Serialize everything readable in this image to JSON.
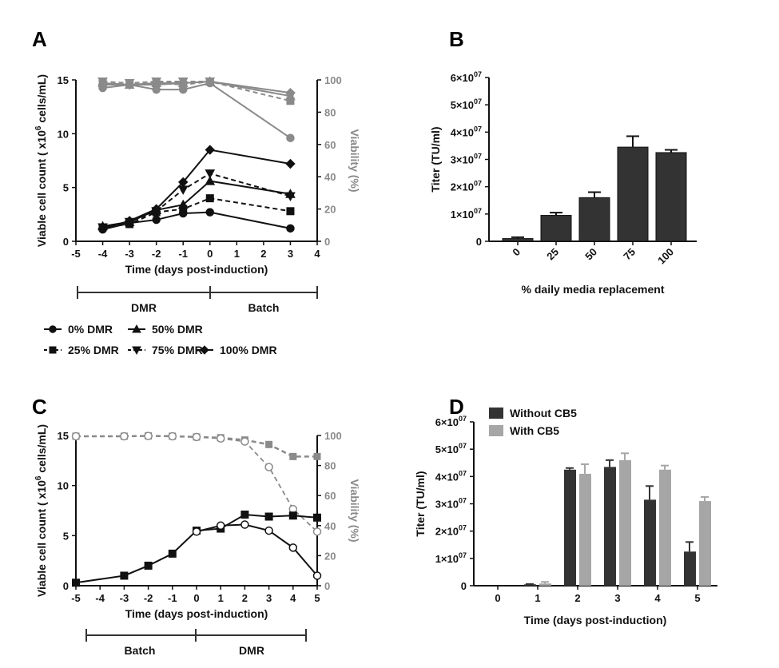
{
  "chart_data": [
    {
      "panel": "A",
      "type": "line",
      "xlabel": "Time (days post-induction)",
      "ylabel": "Viable cell count ( x10^6 cells/mL)",
      "y2label": "Viability (%)",
      "xlim": [
        -5,
        4
      ],
      "ylim": [
        0,
        15
      ],
      "y2lim": [
        0,
        100
      ],
      "xticks": [
        -5,
        -4,
        -3,
        -2,
        -1,
        0,
        1,
        2,
        3,
        4
      ],
      "yticks": [
        0,
        5,
        10,
        15
      ],
      "y2ticks": [
        0,
        20,
        40,
        60,
        80,
        100
      ],
      "x": [
        -4,
        -3,
        -2,
        -1,
        0,
        3
      ],
      "series": [
        {
          "name": "0%  DMR",
          "marker": "circle",
          "dashed": false,
          "cells": [
            1.1,
            1.7,
            2.0,
            2.6,
            2.7,
            1.2
          ],
          "viability": [
            95,
            97,
            94,
            94,
            98,
            64
          ]
        },
        {
          "name": "25%  DMR",
          "marker": "square",
          "dashed": true,
          "cells": [
            1.3,
            1.6,
            2.7,
            3.0,
            4.0,
            2.8
          ],
          "viability": [
            98,
            97,
            98,
            97,
            99,
            87
          ]
        },
        {
          "name": "50%  DMR",
          "marker": "triangle",
          "dashed": false,
          "cells": [
            1.4,
            1.8,
            2.9,
            3.4,
            5.6,
            4.4
          ],
          "viability": [
            98,
            97,
            98,
            98,
            99,
            90
          ]
        },
        {
          "name": "75% DMR",
          "marker": "triangle-down",
          "dashed": true,
          "cells": [
            1.3,
            1.8,
            2.8,
            4.8,
            6.3,
            4.2
          ],
          "viability": [
            99,
            98,
            99,
            99,
            99,
            90
          ]
        },
        {
          "name": "100% DMR",
          "marker": "diamond",
          "dashed": false,
          "cells": [
            1.2,
            1.9,
            3.0,
            5.5,
            8.5,
            7.2
          ],
          "viability": [
            97,
            97,
            97,
            98,
            99,
            92
          ]
        }
      ],
      "phases": [
        "DMR",
        "Batch"
      ]
    },
    {
      "panel": "B",
      "type": "bar",
      "xlabel": "% daily media replacement",
      "ylabel": "Titer (TU/ml)",
      "categories": [
        "0",
        "25",
        "50",
        "75",
        "100"
      ],
      "values": [
        1000000,
        9500000,
        16000000,
        34500000,
        32500000
      ],
      "errors": [
        500000,
        1000000,
        2000000,
        4000000,
        1000000
      ],
      "ylim": [
        0,
        60000000
      ],
      "yticks": [
        "0",
        "1×10^07",
        "2×10^07",
        "3×10^07",
        "4×10^07",
        "5×10^07",
        "6×10^07"
      ]
    },
    {
      "panel": "C",
      "type": "line",
      "xlabel": "Time (days post-induction)",
      "ylabel": "Viable cell count ( x10^6 cells/mL)",
      "y2label": "Viability (%)",
      "xlim": [
        -5,
        5
      ],
      "ylim": [
        0,
        15
      ],
      "y2lim": [
        0,
        100
      ],
      "xticks": [
        -5,
        -4,
        -3,
        -2,
        -1,
        0,
        1,
        2,
        3,
        4,
        5
      ],
      "yticks": [
        0,
        5,
        10,
        15
      ],
      "y2ticks": [
        0,
        20,
        40,
        60,
        80,
        100
      ],
      "series": [
        {
          "name": "cells-filled",
          "x": [
            -5,
            -3,
            -2,
            -1,
            0,
            1,
            2,
            3,
            4,
            5
          ],
          "cells": [
            0.3,
            1.0,
            2.0,
            3.2,
            5.5,
            5.7,
            7.1,
            6.9,
            7.0,
            6.8
          ],
          "vx": [
            -5,
            -3,
            -2,
            -1,
            0,
            1,
            2,
            3,
            4,
            5
          ],
          "viability": [
            99.5,
            99.5,
            99.7,
            99.5,
            99,
            98.5,
            97,
            94,
            86,
            86
          ]
        },
        {
          "name": "cells-open",
          "x": [
            0,
            1,
            2,
            3,
            4,
            5
          ],
          "cells": [
            5.4,
            6.0,
            6.1,
            5.5,
            3.8,
            1.0
          ],
          "vx": [
            -5,
            -3,
            -2,
            -1,
            0,
            1,
            2,
            3,
            4,
            5
          ],
          "viability": [
            99.5,
            99.5,
            99.7,
            99.5,
            99,
            98,
            96,
            79,
            51,
            36
          ]
        }
      ],
      "phases": [
        "Batch",
        "DMR"
      ]
    },
    {
      "panel": "D",
      "type": "bar",
      "xlabel": "Time (days post-induction)",
      "ylabel": "Titer (TU/ml)",
      "categories": [
        "0",
        "1",
        "2",
        "3",
        "4",
        "5"
      ],
      "series": [
        {
          "name": "Without CB5",
          "color": "#333333",
          "values": [
            0,
            500000,
            42500000,
            43500000,
            31500000,
            12500000
          ],
          "errors": [
            0,
            100000,
            600000,
            2500000,
            5000000,
            3500000
          ]
        },
        {
          "name": "With CB5",
          "color": "#a6a6a6",
          "values": [
            0,
            800000,
            41000000,
            46000000,
            42500000,
            31000000
          ],
          "errors": [
            0,
            600000,
            3500000,
            2500000,
            1500000,
            1500000
          ]
        }
      ],
      "ylim": [
        0,
        60000000
      ],
      "yticks": [
        "0",
        "1×10^07",
        "2×10^07",
        "3×10^07",
        "4×10^07",
        "5×10^07",
        "6×10^07"
      ]
    }
  ],
  "panel_labels": [
    "A",
    "B",
    "C",
    "D"
  ]
}
